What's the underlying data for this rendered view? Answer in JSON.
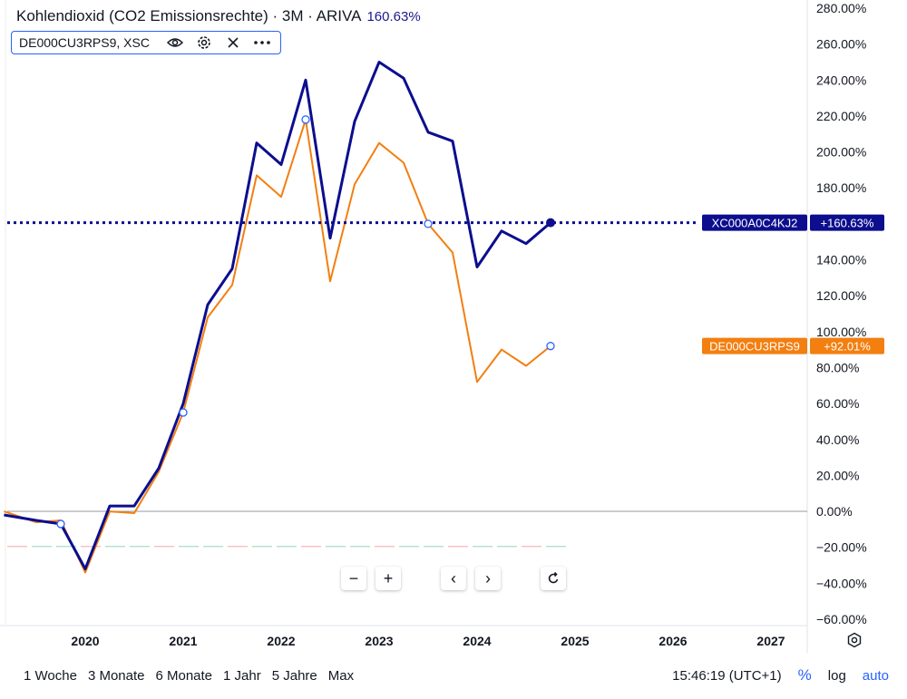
{
  "header": {
    "title": "Kohlendioxid (CO2 Emissionsrechte) · 3M · ARIVA",
    "change": "160.63%",
    "compare_symbol": "DE000CU3RPS9, XSC"
  },
  "icons": {
    "eye": "eye-icon",
    "settings": "gear-icon",
    "remove": "close-icon",
    "more": "more-icon"
  },
  "nav": {
    "zoom_out": "−",
    "zoom_in": "+",
    "back": "‹",
    "forward": "›",
    "reset": "reset-icon"
  },
  "bottom": {
    "ranges": [
      "1 Woche",
      "3 Monate",
      "6 Monate",
      "1 Jahr",
      "5 Jahre",
      "Max"
    ],
    "time": "15:46:19 (UTC+1)",
    "percent": "%",
    "log": "log",
    "auto": "auto"
  },
  "colors": {
    "primary": "#0c0e8e",
    "compare": "#f27f10",
    "accent": "#2962ff"
  },
  "chart_data": {
    "type": "line",
    "y_unit": "%",
    "ylim": [
      -60,
      280
    ],
    "yticks": [
      "280.00%",
      "260.00%",
      "240.00%",
      "220.00%",
      "200.00%",
      "180.00%",
      "160.00%",
      "140.00%",
      "120.00%",
      "100.00%",
      "80.00%",
      "60.00%",
      "40.00%",
      "20.00%",
      "0.00%",
      "−20.00%",
      "−40.00%",
      "−60.00%"
    ],
    "xticks": [
      "2020",
      "2021",
      "2022",
      "2023",
      "2024",
      "2025",
      "2026",
      "2027"
    ],
    "x_range": [
      2019.17,
      2027.4
    ],
    "x": [
      2019.17,
      2019.5,
      2019.75,
      2020.0,
      2020.25,
      2020.5,
      2020.75,
      2021.0,
      2021.25,
      2021.5,
      2021.75,
      2022.0,
      2022.25,
      2022.5,
      2022.75,
      2023.0,
      2023.25,
      2023.5,
      2023.75,
      2024.0,
      2024.25,
      2024.5,
      2024.75
    ],
    "series": [
      {
        "name": "XC000A0C4KJ2",
        "label": "+160.63%",
        "values": [
          -2,
          -5,
          -7,
          -32,
          3,
          3,
          24,
          60,
          115,
          135,
          205,
          193,
          240,
          152,
          217,
          250,
          241,
          211,
          206,
          136,
          156,
          149,
          160.63
        ]
      },
      {
        "name": "DE000CU3RPS9",
        "label": "+92.01%",
        "values": [
          0,
          -6,
          -5,
          -34,
          0,
          -1,
          22,
          55,
          108,
          126,
          187,
          175,
          218,
          128,
          182,
          205,
          194,
          160,
          144,
          72,
          90,
          81,
          92.01
        ]
      }
    ]
  }
}
